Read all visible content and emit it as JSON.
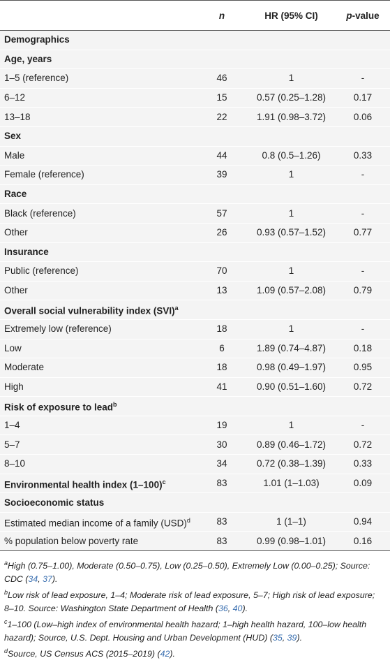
{
  "header": {
    "n": "n",
    "hr": "HR (95% CI)",
    "p_italic": "p",
    "p_rest": "-value"
  },
  "rows": [
    {
      "label": "Demographics",
      "bold": true
    },
    {
      "label": "Age, years",
      "bold": true
    },
    {
      "label": "1–5 (reference)",
      "n": 46,
      "hr": "1",
      "p": "-"
    },
    {
      "label": "6–12",
      "n": 15,
      "hr": "0.57 (0.25–1.28)",
      "p": "0.17"
    },
    {
      "label": "13–18",
      "n": 22,
      "hr": "1.91 (0.98–3.72)",
      "p": "0.06"
    },
    {
      "label": "Sex",
      "bold": true
    },
    {
      "label": "Male",
      "n": 44,
      "hr": "0.8 (0.5–1.26)",
      "p": "0.33"
    },
    {
      "label": "Female (reference)",
      "n": 39,
      "hr": "1",
      "p": "-"
    },
    {
      "label": "Race",
      "bold": true
    },
    {
      "label": "Black (reference)",
      "n": 57,
      "hr": "1",
      "p": "-"
    },
    {
      "label": "Other",
      "n": 26,
      "hr": "0.93 (0.57–1.52)",
      "p": "0.77"
    },
    {
      "label": "Insurance",
      "bold": true
    },
    {
      "label": "Public (reference)",
      "n": 70,
      "hr": "1",
      "p": "-"
    },
    {
      "label": "Other",
      "n": 13,
      "hr": "1.09 (0.57–2.08)",
      "p": "0.79"
    },
    {
      "label": "Overall social vulnerability index (SVI)",
      "sup": "a",
      "bold": true
    },
    {
      "label": "Extremely low (reference)",
      "n": 18,
      "hr": "1",
      "p": "-"
    },
    {
      "label": "Low",
      "n": 6,
      "hr": "1.89 (0.74–4.87)",
      "p": "0.18"
    },
    {
      "label": "Moderate",
      "n": 18,
      "hr": "0.98 (0.49–1.97)",
      "p": "0.95"
    },
    {
      "label": "High",
      "n": 41,
      "hr": "0.90 (0.51–1.60)",
      "p": "0.72"
    },
    {
      "label": "Risk of exposure to lead",
      "sup": "b",
      "bold": true
    },
    {
      "label": "1–4",
      "n": 19,
      "hr": "1",
      "p": "-"
    },
    {
      "label": "5–7",
      "n": 30,
      "hr": "0.89 (0.46–1.72)",
      "p": "0.72"
    },
    {
      "label": "8–10",
      "n": 34,
      "hr": "0.72 (0.38–1.39)",
      "p": "0.33"
    },
    {
      "label": "Environmental health index (1–100)",
      "sup": "c",
      "bold": true,
      "n": 83,
      "hr": "1.01 (1–1.03)",
      "p": "0.09"
    },
    {
      "label": "Socioeconomic status",
      "bold": true
    },
    {
      "label": "Estimated median income of a family (USD)",
      "sup": "d",
      "n": 83,
      "hr": "1 (1–1)",
      "p": "0.94"
    },
    {
      "label": "% population below poverty rate",
      "n": 83,
      "hr": "0.99 (0.98–1.01)",
      "p": "0.16"
    }
  ],
  "footnotes": [
    {
      "mark": "a",
      "segments": [
        {
          "text": "High (0.75–1.00), Moderate (0.50–0.75), Low (0.25–0.50), Extremely Low (0.00–0.25); Source: CDC ("
        },
        {
          "text": "34",
          "ref": true
        },
        {
          "text": ", "
        },
        {
          "text": "37",
          "ref": true
        },
        {
          "text": ")."
        }
      ]
    },
    {
      "mark": "b",
      "segments": [
        {
          "text": "Low risk of lead exposure, 1–4; Moderate risk of lead exposure, 5–7; High risk of lead exposure; 8–10. Source: Washington State Department of Health ("
        },
        {
          "text": "36",
          "ref": true
        },
        {
          "text": ", "
        },
        {
          "text": "40",
          "ref": true
        },
        {
          "text": ")."
        }
      ]
    },
    {
      "mark": "c",
      "segments": [
        {
          "text": "1–100 (Low–high index of environmental health hazard; 1–high health hazard, 100–low health hazard); Source, U.S. Dept. Housing and Urban Development (HUD) ("
        },
        {
          "text": "35",
          "ref": true
        },
        {
          "text": ", "
        },
        {
          "text": "39",
          "ref": true
        },
        {
          "text": ")."
        }
      ]
    },
    {
      "mark": "d",
      "segments": [
        {
          "text": "Source, US Census ACS (2015–2019) ("
        },
        {
          "text": "42",
          "ref": true
        },
        {
          "text": ")."
        }
      ]
    }
  ]
}
